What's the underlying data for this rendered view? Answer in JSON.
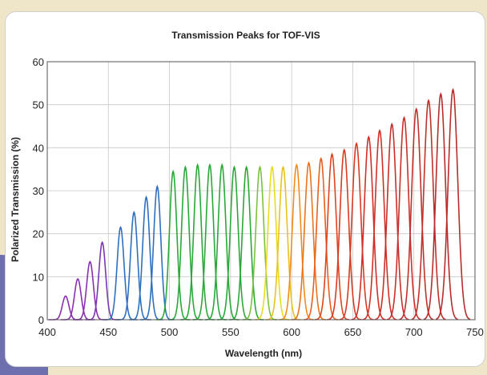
{
  "chart_data": {
    "type": "line",
    "title": "Transmission Peaks for TOF-VIS",
    "xlabel": "Wavelength (nm)",
    "ylabel": "Polarized Transmission (%)",
    "xlim": [
      400,
      750
    ],
    "ylim": [
      0,
      60
    ],
    "xticks": [
      400,
      450,
      500,
      550,
      600,
      650,
      700,
      750
    ],
    "xtick_labels": [
      "400",
      "450",
      "500",
      "550",
      "600",
      "650",
      "700",
      "750"
    ],
    "yticks": [
      0,
      10,
      20,
      30,
      40,
      50,
      60
    ],
    "ytick_labels": [
      "0",
      "10",
      "20",
      "30",
      "40",
      "50",
      "60"
    ],
    "grid": true,
    "legend": "none",
    "peak_wavelengths": [
      415,
      425,
      435,
      445,
      460,
      471,
      481,
      490,
      503,
      513,
      523,
      533,
      543,
      553,
      563,
      574,
      584,
      593,
      604,
      614,
      624,
      633,
      643,
      653,
      663,
      672,
      682,
      692,
      702,
      712,
      722,
      732
    ],
    "peak_transmission": [
      5.5,
      9.5,
      13.5,
      18,
      21.5,
      25,
      28.5,
      31,
      34.5,
      35.5,
      36,
      36,
      36,
      35.5,
      35.5,
      35.5,
      35.5,
      35.5,
      36,
      36.5,
      37.5,
      38.5,
      39.5,
      41,
      42.5,
      44,
      45.5,
      47,
      49,
      51,
      52.5,
      53.5
    ],
    "peak_colors": [
      "#8a2fb0",
      "#8a2fb0",
      "#8a2fb0",
      "#7b35b5",
      "#2f6fc0",
      "#2f6fc0",
      "#2f6fc0",
      "#2f6fc0",
      "#2aa838",
      "#2aa838",
      "#2aa838",
      "#2aa838",
      "#2aa838",
      "#2aa838",
      "#2aa838",
      "#7cc23a",
      "#e8dc1e",
      "#e8c21e",
      "#f08c1e",
      "#e8741e",
      "#e8601e",
      "#e0441e",
      "#d83a22",
      "#d83a22",
      "#d03028",
      "#d03028",
      "#c8302a",
      "#c8302a",
      "#c0302c",
      "#c0302c",
      "#b82c2c",
      "#b82c2c"
    ]
  }
}
